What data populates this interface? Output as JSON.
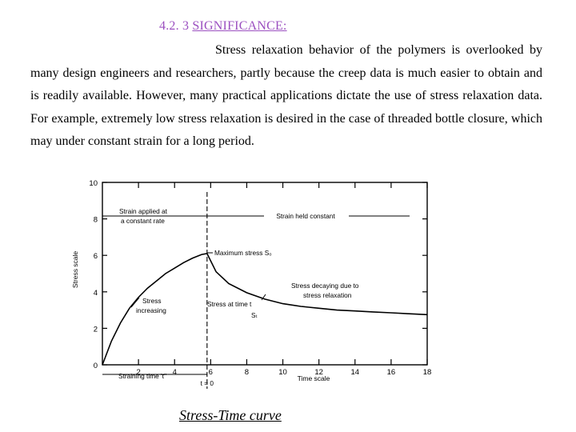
{
  "section": {
    "number": "4.2. 3",
    "title": "SIGNIFICANCE:"
  },
  "paragraph": "Stress relaxation behavior of the polymers is overlooked by many design engineers and researchers, partly because the creep data is much easier to obtain and is readily available. However, many practical applications dictate the use of stress relaxation data. For example, extremely low stress relaxation is desired in the case of threaded bottle closure, which may under constant strain for a long period.",
  "caption": "Stress-Time curve",
  "chart_data": {
    "type": "line",
    "title": "",
    "xlabel": "Time scale",
    "ylabel": "Stress scale",
    "xlim": [
      0,
      18
    ],
    "ylim": [
      0,
      10
    ],
    "x_ticks": [
      "2",
      "4",
      "6",
      "8",
      "10",
      "12",
      "14",
      "16",
      "18"
    ],
    "y_ticks": [
      "0",
      "2",
      "4",
      "6",
      "8",
      "10"
    ],
    "grid": false,
    "series": [
      {
        "x": [
          0,
          0.5,
          1,
          1.5,
          2,
          2.5,
          3,
          3.5,
          4,
          4.5,
          5,
          5.5,
          5.8,
          6.3,
          7,
          8,
          9,
          10,
          11,
          12,
          13,
          14,
          15,
          16,
          17,
          18
        ],
        "y": [
          0,
          1.3,
          2.3,
          3.1,
          3.7,
          4.2,
          4.6,
          5.0,
          5.3,
          5.6,
          5.85,
          6.05,
          6.1,
          5.1,
          4.45,
          3.95,
          3.6,
          3.35,
          3.2,
          3.1,
          3.0,
          2.95,
          2.9,
          2.85,
          2.8,
          2.75
        ]
      }
    ],
    "annotations": {
      "strain_applied": [
        "Strain applied at",
        "a constant rate"
      ],
      "strain_held": "Strain held constant",
      "max_stress": "Maximum stress S₀",
      "decaying": [
        "Stress decaying due to",
        "stress relaxation"
      ],
      "increasing": [
        "Stress",
        "increasing"
      ],
      "stress_at_t": [
        "Stress at time t",
        "Sₜ"
      ],
      "straining_time": "Straining time 't′'",
      "t_zero": "t = 0"
    },
    "max_point": {
      "x": 5.8,
      "y": 6.1
    }
  }
}
